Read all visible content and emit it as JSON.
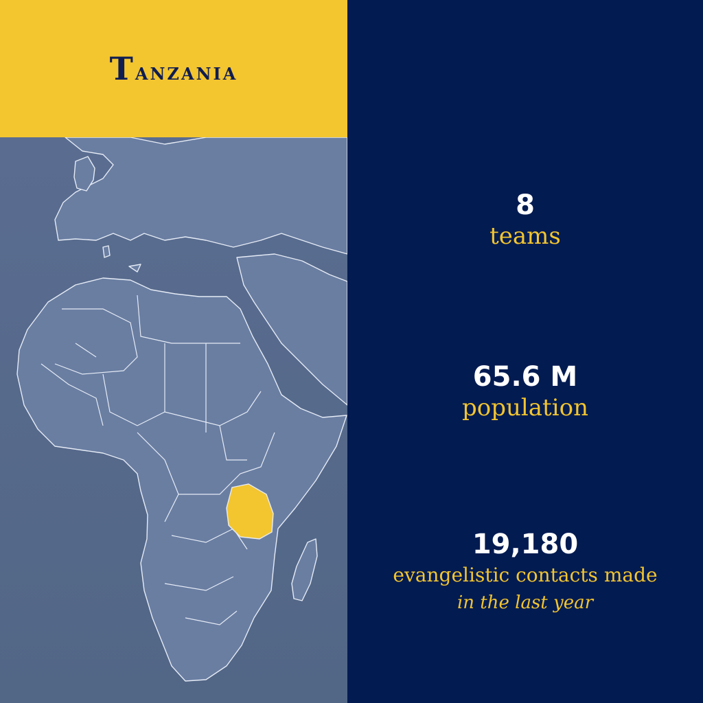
{
  "title": "Tanzania",
  "stats": [
    {
      "value": "8",
      "label": "teams"
    },
    {
      "value": "65.6 M",
      "label": "population"
    },
    {
      "value": "19,180",
      "label": "evangelistic contacts made",
      "sublabel": "in the last year"
    }
  ],
  "colors": {
    "accent": "#f3c52f",
    "navy": "#021b51",
    "map_land": "#687ca0",
    "map_sea": "#556a8c",
    "highlight": "#f3c52f"
  },
  "map": {
    "highlighted_country": "Tanzania"
  }
}
